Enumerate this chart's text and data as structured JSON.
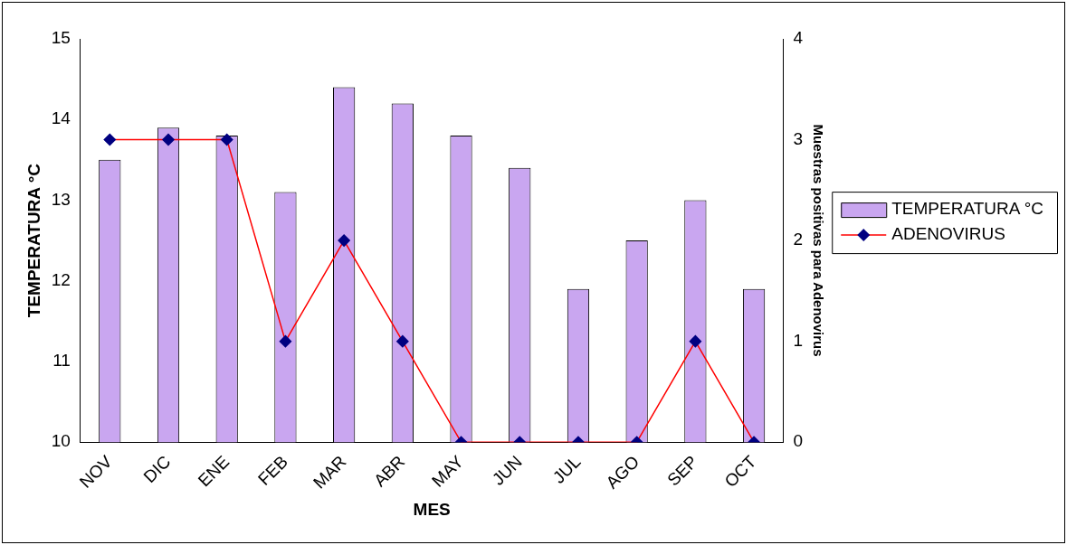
{
  "chart_data": {
    "type": "bar",
    "xlabel": "MES",
    "ylabel": "TEMPERATURA °C",
    "y2label": "Muestras positivas para Adenovirus",
    "categories": [
      "NOV",
      "DIC",
      "ENE",
      "FEB",
      "MAR",
      "ABR",
      "MAY",
      "JUN",
      "JUL",
      "AGO",
      "SEP",
      "OCT"
    ],
    "series": [
      {
        "name": "TEMPERATURA °C",
        "color": "#c9a6f0",
        "values": [
          13.5,
          13.9,
          13.8,
          13.1,
          14.4,
          14.2,
          13.8,
          13.4,
          11.9,
          12.5,
          13.0,
          11.9
        ]
      },
      {
        "name": "ADENOVIRUS",
        "type": "line",
        "axis": "y2",
        "color": "#ff0000",
        "marker": "diamond",
        "values": [
          3,
          3,
          3,
          1,
          2,
          1,
          0,
          0,
          0,
          0,
          1,
          0
        ]
      }
    ],
    "ylim": [
      10,
      15
    ],
    "yticks": [
      10,
      11,
      12,
      13,
      14,
      15
    ],
    "y2lim": [
      0,
      4
    ],
    "y2ticks": [
      0,
      1,
      2,
      3,
      4
    ],
    "grid": false,
    "legend": "right"
  }
}
